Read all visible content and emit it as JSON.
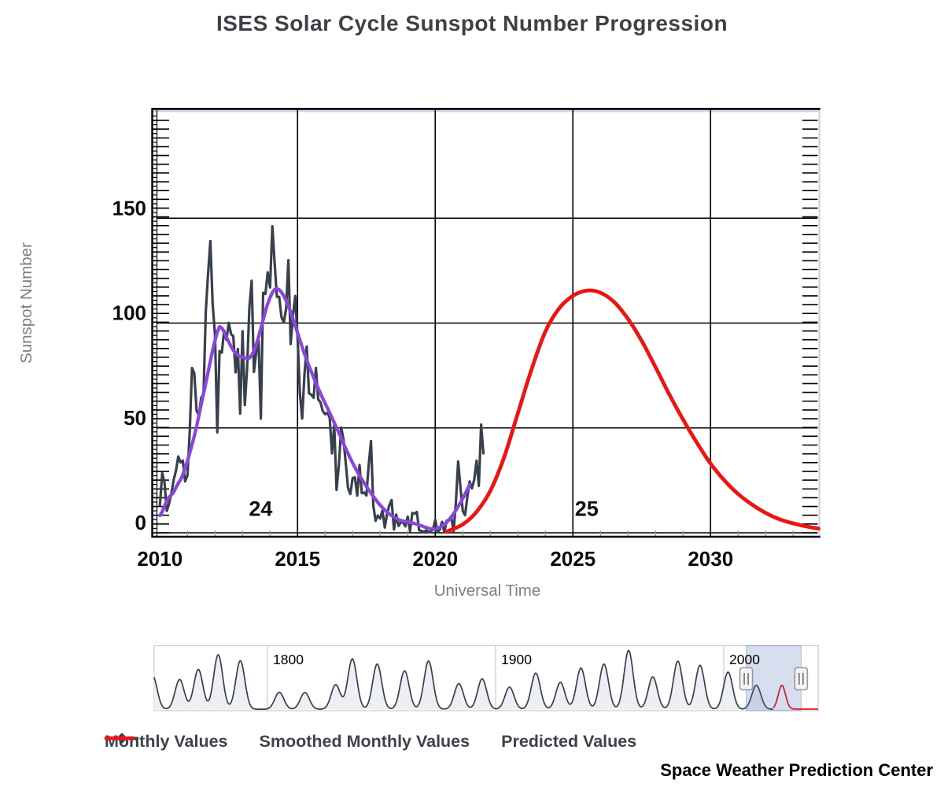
{
  "title": "ISES Solar Cycle Sunspot Number Progression",
  "credit": "Space Weather Prediction Center",
  "colors": {
    "monthly": "#37404c",
    "smoothed": "#8a46dd",
    "predicted": "#ee1410",
    "gridline": "#000000",
    "axis_title": "#7f7f7f",
    "tick_label": "#0a0a0a",
    "minor_xtick": "#999999",
    "scroll_strip": "#c9d4ea",
    "nav_fill": "#edeff4",
    "nav_border": "#cbcbcb",
    "selection_fill": "rgba(72,106,184,0.22)",
    "selection_stroke": "rgba(72,106,184,0.38)"
  },
  "legend": [
    {
      "label": "Monthly Values",
      "marker": "diamond-line",
      "color": "#37404c"
    },
    {
      "label": "Smoothed Monthly Values",
      "marker": "line",
      "color": "#8a46dd"
    },
    {
      "label": "Predicted Values",
      "marker": "line",
      "color": "#ee1410"
    }
  ],
  "chart_data": {
    "type": "line",
    "title": "ISES Solar Cycle Sunspot Number Progression",
    "xlabel": "Universal Time",
    "ylabel": "Sunspot Number",
    "x_ticks": [
      2010,
      2015,
      2020,
      2025,
      2030
    ],
    "y_ticks": [
      0,
      50,
      100,
      150
    ],
    "xlim": [
      2009.85,
      2033.92
    ],
    "ylim": [
      0,
      200
    ],
    "grid": true,
    "legend_position": "bottom",
    "cycle_labels": [
      {
        "text": "24",
        "year": 2013.66,
        "value": 11.5
      },
      {
        "text": "25",
        "year": 2025.5,
        "value": 11.5
      }
    ],
    "series": [
      {
        "name": "Monthly Values",
        "type": "monthly",
        "start_year": 2010.0,
        "step_months": 1,
        "values": [
          13.2,
          28.5,
          24.0,
          10.4,
          13.9,
          18.8,
          25.2,
          29.6,
          36.4,
          33.6,
          34.4,
          24.5,
          27.3,
          48.3,
          78.6,
          76.1,
          58.2,
          56.1,
          64.5,
          65.8,
          105.4,
          123.6,
          139.1,
          109.3,
          94.4,
          47.9,
          86.6,
          85.9,
          96.5,
          92.0,
          100.1,
          94.8,
          93.7,
          76.5,
          87.6,
          56.8,
          96.1,
          60.9,
          78.3,
          107.3,
          120.2,
          76.7,
          86.2,
          91.8,
          54.5,
          114.4,
          113.9,
          124.2,
          117.0,
          146.1,
          128.7,
          112.5,
          112.5,
          102.9,
          100.2,
          106.9,
          130.0,
          90.0,
          103.6,
          112.9,
          93.0,
          66.7,
          54.5,
          75.3,
          88.8,
          66.5,
          65.8,
          64.4,
          78.6,
          63.6,
          62.2,
          58.0,
          56.6,
          57.2,
          54.9,
          37.9,
          51.5,
          20.5,
          32.4,
          50.2,
          44.6,
          33.4,
          21.4,
          18.5,
          26.1,
          26.4,
          17.7,
          32.3,
          18.9,
          19.2,
          17.8,
          32.6,
          43.7,
          13.2,
          5.7,
          8.2,
          6.8,
          10.7,
          2.5,
          8.9,
          13.1,
          15.6,
          1.6,
          8.7,
          3.3,
          4.9,
          4.9,
          3.1,
          7.7,
          0.8,
          9.4,
          9.1,
          9.9,
          1.2,
          0.9,
          0.5,
          1.1,
          0.4,
          0.5,
          1.5,
          6.2,
          0.2,
          1.5,
          5.2,
          0.2,
          5.8,
          6.1,
          7.5,
          0.6,
          14.4,
          34.0,
          21.8,
          10.4,
          8.4,
          17.2,
          24.5,
          21.2,
          25.3,
          34.4,
          22.4,
          51.6,
          37.9
        ]
      },
      {
        "name": "Smoothed Monthly Values",
        "type": "smoothed",
        "start_year": 2010.0,
        "step_months": 1,
        "values": [
          8.3,
          10.0,
          12.8,
          15.2,
          16.9,
          18.1,
          19.4,
          21.6,
          23.6,
          25.3,
          27.6,
          31.0,
          34.3,
          38.1,
          42.0,
          46.1,
          50.7,
          55.9,
          61.3,
          66.4,
          71.3,
          76.5,
          81.8,
          87.0,
          91.7,
          95.6,
          98.3,
          97.6,
          95.8,
          93.4,
          91.0,
          88.8,
          87.0,
          85.6,
          84.6,
          84.0,
          83.7,
          83.4,
          83.0,
          83.3,
          84.6,
          86.8,
          89.8,
          93.4,
          97.4,
          101.6,
          105.6,
          109.2,
          112.2,
          114.5,
          116.0,
          116.4,
          115.9,
          114.7,
          112.9,
          110.7,
          108.1,
          105.2,
          102.0,
          98.7,
          95.3,
          91.9,
          88.6,
          85.4,
          82.4,
          79.5,
          76.7,
          74.0,
          71.4,
          68.9,
          66.5,
          64.1,
          61.8,
          59.5,
          57.2,
          54.9,
          52.5,
          50.1,
          47.6,
          45.1,
          42.6,
          40.2,
          37.8,
          35.5,
          33.3,
          31.2,
          29.2,
          27.3,
          25.5,
          23.8,
          22.1,
          20.5,
          18.9,
          17.4,
          15.9,
          14.5,
          13.2,
          12.0,
          10.9,
          9.9,
          9.0,
          8.2,
          7.5,
          6.9,
          6.3,
          5.9,
          5.6,
          5.4,
          5.2,
          5.0,
          4.7,
          4.4,
          4.1,
          3.7,
          3.3,
          2.9,
          2.5,
          2.1,
          1.9,
          1.8,
          1.9,
          2.2,
          2.6,
          3.2,
          4.0,
          5.0,
          6.2,
          7.6,
          9.1,
          10.7,
          12.5,
          14.4,
          16.4,
          18.5,
          20.7,
          23.0
        ]
      },
      {
        "name": "Predicted Values",
        "type": "predicted",
        "points": [
          [
            2020.4,
            0.5
          ],
          [
            2021.0,
            4
          ],
          [
            2021.5,
            10
          ],
          [
            2022.0,
            20
          ],
          [
            2022.5,
            36
          ],
          [
            2023.0,
            57
          ],
          [
            2023.5,
            78
          ],
          [
            2024.0,
            96
          ],
          [
            2024.5,
            107
          ],
          [
            2025.0,
            113
          ],
          [
            2025.5,
            115.5
          ],
          [
            2026.0,
            114.5
          ],
          [
            2026.5,
            110
          ],
          [
            2027.0,
            102
          ],
          [
            2027.5,
            91.5
          ],
          [
            2028.0,
            79
          ],
          [
            2028.5,
            66
          ],
          [
            2029.0,
            54
          ],
          [
            2029.5,
            43
          ],
          [
            2030.0,
            33
          ],
          [
            2030.5,
            25
          ],
          [
            2031.0,
            18.5
          ],
          [
            2031.5,
            13.5
          ],
          [
            2032.0,
            9.5
          ],
          [
            2032.5,
            6.5
          ],
          [
            2033.0,
            4.5
          ],
          [
            2033.5,
            3
          ],
          [
            2033.92,
            2
          ]
        ]
      }
    ],
    "navigator": {
      "x_ticks": [
        1800,
        1900,
        2000
      ],
      "xlim": [
        1750.3,
        2041.4
      ],
      "selection": [
        2009.85,
        2033.92
      ],
      "cycle_peaks": [
        [
          1749.6,
          165
        ],
        [
          1761.5,
          144
        ],
        [
          1769.7,
          193
        ],
        [
          1778.4,
          264
        ],
        [
          1788.1,
          235
        ],
        [
          1805.2,
          82
        ],
        [
          1816.4,
          81
        ],
        [
          1829.9,
          119
        ],
        [
          1837.2,
          244
        ],
        [
          1848.1,
          219
        ],
        [
          1860.1,
          186
        ],
        [
          1870.6,
          234
        ],
        [
          1883.9,
          124
        ],
        [
          1894.1,
          147
        ],
        [
          1906.1,
          107
        ],
        [
          1917.6,
          175
        ],
        [
          1928.4,
          130
        ],
        [
          1937.4,
          199
        ],
        [
          1947.5,
          219
        ],
        [
          1958.3,
          285
        ],
        [
          1968.9,
          157
        ],
        [
          1979.9,
          233
        ],
        [
          1989.6,
          213
        ],
        [
          2001.9,
          180
        ],
        [
          2014.3,
          116
        ]
      ],
      "predicted_peak": [
        2025.5,
        115
      ],
      "predicted_tail_value": 2
    }
  }
}
